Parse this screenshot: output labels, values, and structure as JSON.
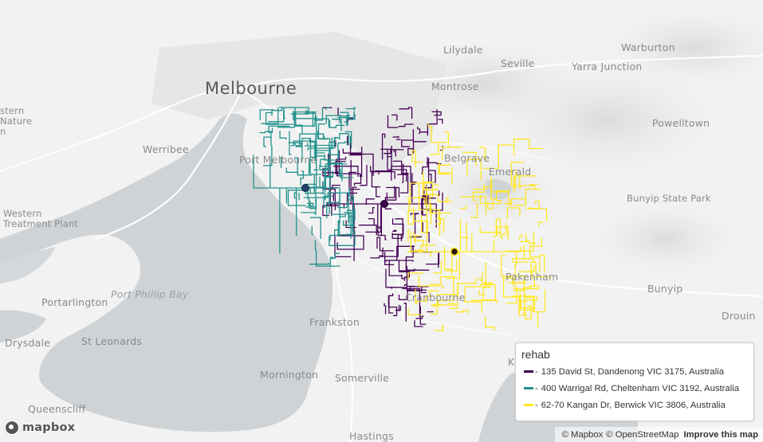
{
  "map": {
    "places": [
      {
        "id": "melbourne",
        "label": "Melbourne",
        "cls": "big"
      },
      {
        "id": "lilydale",
        "label": "Lilydale",
        "cls": ""
      },
      {
        "id": "warburton",
        "label": "Warburton",
        "cls": ""
      },
      {
        "id": "seville",
        "label": "Seville",
        "cls": ""
      },
      {
        "id": "yarra-junction",
        "label": "Yarra Junction",
        "cls": ""
      },
      {
        "id": "montrose",
        "label": "Montrose",
        "cls": ""
      },
      {
        "id": "powelltown",
        "label": "Powelltown",
        "cls": ""
      },
      {
        "id": "werribee",
        "label": "Werribee",
        "cls": ""
      },
      {
        "id": "port-melbourne",
        "label": "Port Melbourne",
        "cls": ""
      },
      {
        "id": "belgrave",
        "label": "Belgrave",
        "cls": ""
      },
      {
        "id": "emerald",
        "label": "Emerald",
        "cls": ""
      },
      {
        "id": "bunyip-state-park",
        "label": "Bunyip State Park",
        "cls": "small"
      },
      {
        "id": "western-treatment-plant",
        "label": "Western\nTreatment Plant",
        "cls": "small"
      },
      {
        "id": "port-phillip-bay",
        "label": "Port Phillip Bay",
        "cls": "water"
      },
      {
        "id": "portarlington",
        "label": "Portarlington",
        "cls": ""
      },
      {
        "id": "pakenham",
        "label": "Pakenham",
        "cls": ""
      },
      {
        "id": "bunyip",
        "label": "Bunyip",
        "cls": ""
      },
      {
        "id": "cranbourne",
        "label": "Cranbourne",
        "cls": ""
      },
      {
        "id": "frankston",
        "label": "Frankston",
        "cls": ""
      },
      {
        "id": "drouin",
        "label": "Drouin",
        "cls": ""
      },
      {
        "id": "drysdale",
        "label": "Drysdale",
        "cls": ""
      },
      {
        "id": "st-leonards",
        "label": "St Leonards",
        "cls": ""
      },
      {
        "id": "mornington",
        "label": "Mornington",
        "cls": ""
      },
      {
        "id": "somerville",
        "label": "Somerville",
        "cls": ""
      },
      {
        "id": "queenscliff",
        "label": "Queenscliff",
        "cls": ""
      },
      {
        "id": "hastings",
        "label": "Hastings",
        "cls": ""
      },
      {
        "id": "koo-wee-rup",
        "label": "K",
        "cls": ""
      },
      {
        "id": "western-nature",
        "label": "stern\nNature\nn",
        "cls": "small"
      }
    ],
    "networks": [
      {
        "name": "dandenong",
        "color": "#440154",
        "center": [
          482,
          256
        ]
      },
      {
        "name": "cheltenham",
        "color": "#21918c",
        "center": [
          383,
          236
        ]
      },
      {
        "name": "berwick",
        "color": "#fde725",
        "center": [
          570,
          316
        ]
      }
    ]
  },
  "legend": {
    "title": "rehab",
    "items": [
      {
        "label": "135 David St, Dandenong VIC 3175, Australia",
        "color": "#440154"
      },
      {
        "label": "400 Warrigal Rd, Cheltenham VIC 3192, Australia",
        "color": "#21918c"
      },
      {
        "label": "62-70 Kangan Dr, Berwick VIC 3806, Australia",
        "color": "#fde725"
      }
    ]
  },
  "logo": {
    "text": "mapbox"
  },
  "attribution": {
    "mapbox": "© Mapbox",
    "osm": "© OpenStreetMap",
    "improve": "Improve this map"
  }
}
